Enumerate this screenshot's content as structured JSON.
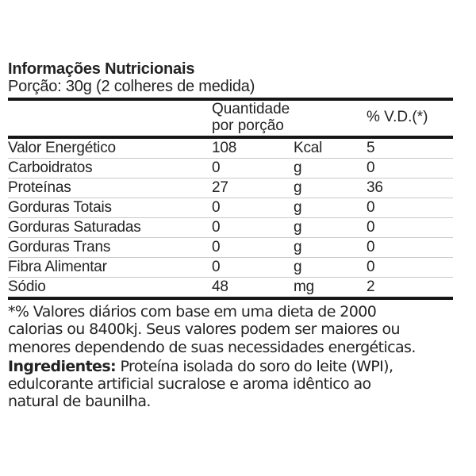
{
  "nutrition_label": {
    "title": "Informações Nutricionais",
    "serving": "Porção: 30g (2 colheres de medida)",
    "table": {
      "header": {
        "quantity_line1": "Quantidade",
        "quantity_line2": "por porção",
        "daily_value": "% V.D.(*)"
      },
      "rows": [
        {
          "name": "Valor Energético",
          "qty": "108",
          "unit": "Kcal",
          "dv": "5"
        },
        {
          "name": "Carboidratos",
          "qty": "0",
          "unit": "g",
          "dv": "0"
        },
        {
          "name": "Proteínas",
          "qty": "27",
          "unit": "g",
          "dv": "36"
        },
        {
          "name": "Gorduras Totais",
          "qty": "0",
          "unit": "g",
          "dv": "0"
        },
        {
          "name": "Gorduras Saturadas",
          "qty": "0",
          "unit": "g",
          "dv": "0"
        },
        {
          "name": "Gorduras Trans",
          "qty": "0",
          "unit": "g",
          "dv": "0"
        },
        {
          "name": "Fibra Alimentar",
          "qty": "0",
          "unit": "g",
          "dv": "0"
        },
        {
          "name": "Sódio",
          "qty": "48",
          "unit": "mg",
          "dv": "2"
        }
      ]
    },
    "footnote": {
      "line1": "*% Valores diários com base em uma dieta de 2000",
      "line2": "calorias ou 8400kj. Seus valores podem ser maiores ou",
      "line3": "menores dependendo de suas necessidades energéticas."
    },
    "ingredients": {
      "label": "Ingredientes:",
      "line1": " Proteína isolada do soro do leite (WPI),",
      "line2": "edulcorante artificial sucralose e aroma idêntico ao",
      "line3": "natural de baunilha."
    }
  },
  "colors": {
    "text": "#232323",
    "rule_heavy": "#161616",
    "rule_light": "#c9c9c9",
    "background": "#ffffff"
  }
}
